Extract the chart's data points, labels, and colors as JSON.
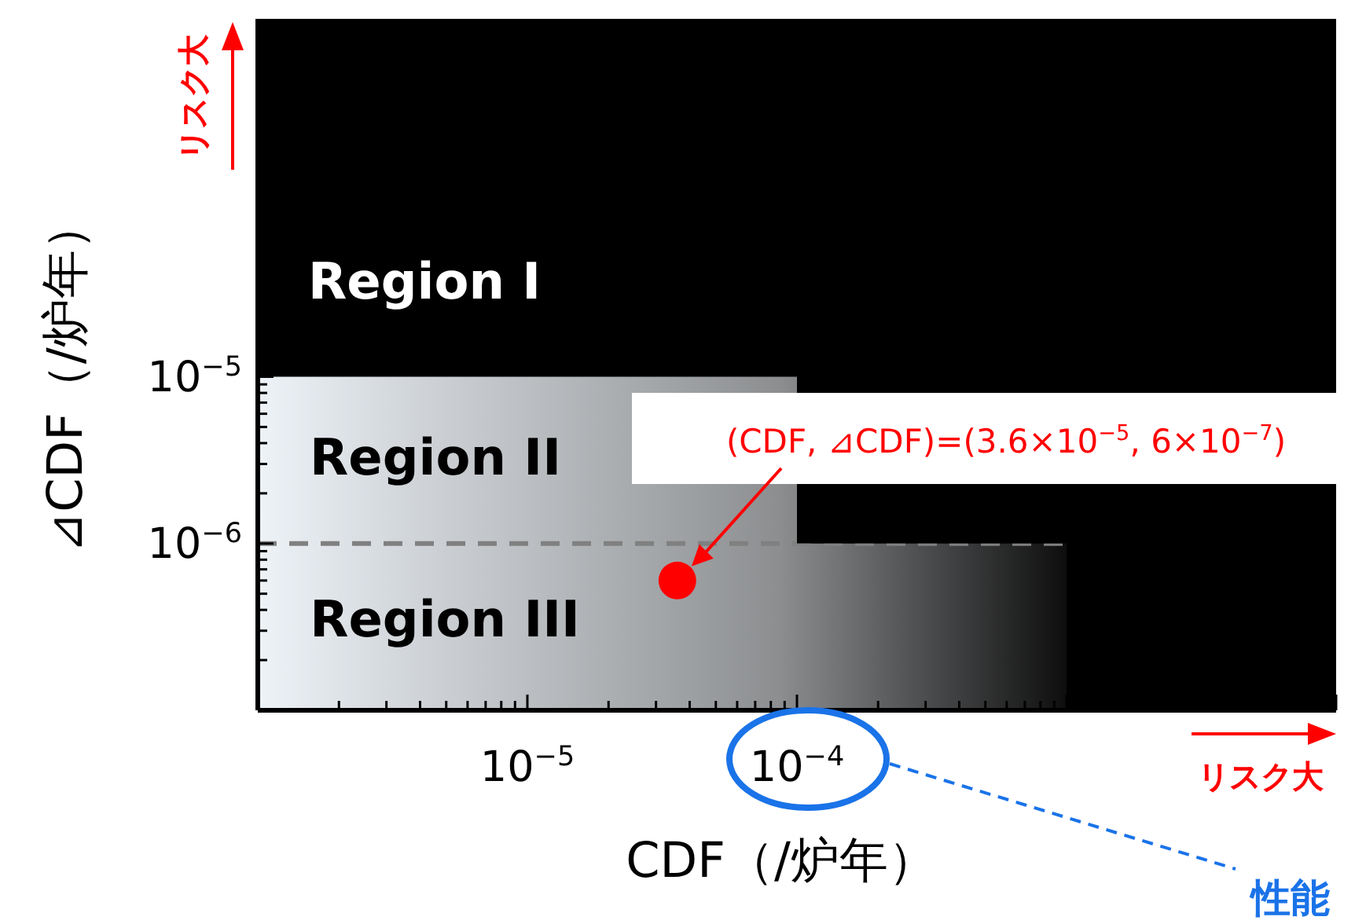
{
  "chart_data": {
    "type": "scatter",
    "xlabel": "CDF（/炉年）",
    "ylabel": "⊿CDF（/炉年）",
    "log": "xy",
    "xlim": [
      1e-06,
      0.01
    ],
    "ylim": [
      1e-07,
      0.0014
    ],
    "xticks": [
      {
        "value": 1e-05,
        "label": "10$^{−5}$"
      },
      {
        "value": 0.0001,
        "label": "10$^{−4}$"
      }
    ],
    "yticks": [
      {
        "value": 1e-06,
        "label": "10$^{−6}$"
      },
      {
        "value": 1e-05,
        "label": "10$^{−5}$"
      }
    ],
    "series": [
      {
        "type": "area",
        "color": "#eef3f8",
        "x": [
          1e-06,
          0.0001,
          0.0001,
          0.001,
          0.001
        ],
        "values": [
          1e-05,
          1e-05,
          1e-06,
          1e-06,
          1e-07
        ]
      },
      {
        "color": "#ff0000",
        "marker": "circle",
        "x": [
          3.6e-05
        ],
        "values": [
          6e-07
        ]
      }
    ],
    "ref_lines": [
      {
        "axis": "y",
        "value": 1e-06,
        "color": "#808080",
        "line_style": "dashed"
      }
    ],
    "annotations": [
      "(CDF, ⊿CDF)=(3.6×10$^{−5}$, 6×10$^{−7}$)",
      "Region I",
      "Region II",
      "Region III",
      "リスク大",
      "リスク大",
      "性能"
    ]
  }
}
